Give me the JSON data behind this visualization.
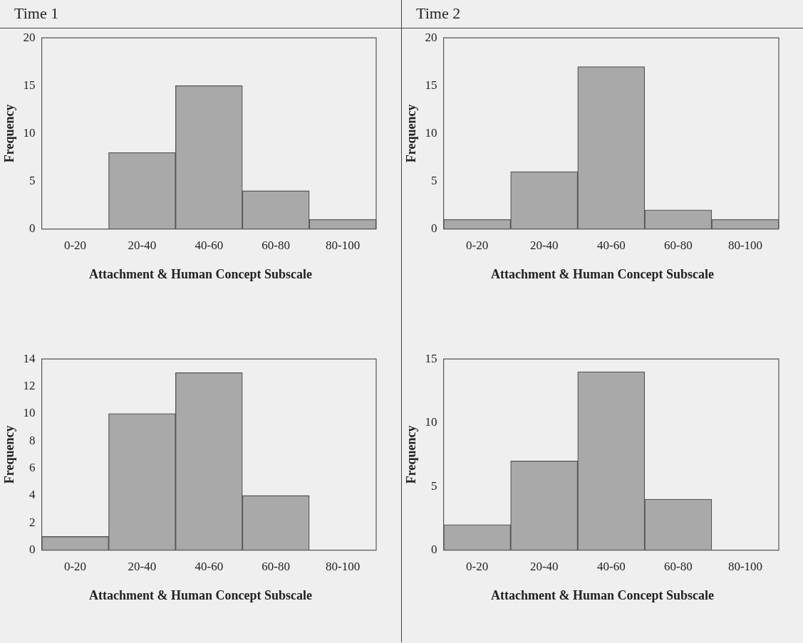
{
  "chart_data": [
    {
      "type": "bar",
      "title": "Time 1",
      "xlabel": "Attachment & Human Concept Subscale",
      "ylabel": "Frequency",
      "categories": [
        "0-20",
        "20-40",
        "40-60",
        "60-80",
        "80-100"
      ],
      "values": [
        0,
        8,
        15,
        4,
        1
      ],
      "color": "#a9a9a9",
      "ylim": [
        0,
        20
      ],
      "yticks": [
        0,
        5,
        10,
        15,
        20
      ]
    },
    {
      "type": "bar",
      "title": "Time 2",
      "xlabel": "Attachment & Human Concept Subscale",
      "ylabel": "Frequency",
      "categories": [
        "0-20",
        "20-40",
        "40-60",
        "60-80",
        "80-100"
      ],
      "values": [
        1,
        6,
        17,
        2,
        1
      ],
      "color": "#a9a9a9",
      "ylim": [
        0,
        20
      ],
      "yticks": [
        0,
        5,
        10,
        15,
        20
      ]
    },
    {
      "type": "bar",
      "xlabel": "Attachment & Human Concept Subscale",
      "ylabel": "Frequency",
      "categories": [
        "0-20",
        "20-40",
        "40-60",
        "60-80",
        "80-100"
      ],
      "values": [
        1,
        10,
        13,
        4,
        0
      ],
      "color": "#a9a9a9",
      "ylim": [
        0,
        14
      ],
      "yticks": [
        0,
        2,
        4,
        6,
        8,
        10,
        12,
        14
      ]
    },
    {
      "type": "bar",
      "xlabel": "Attachment & Human Concept Subscale",
      "ylabel": "Frequency",
      "categories": [
        "0-20",
        "20-40",
        "40-60",
        "60-80",
        "80-100"
      ],
      "values": [
        2,
        7,
        14,
        4,
        0
      ],
      "color": "#a9a9a9",
      "ylim": [
        0,
        15
      ],
      "yticks": [
        0,
        5,
        10,
        15
      ]
    }
  ]
}
